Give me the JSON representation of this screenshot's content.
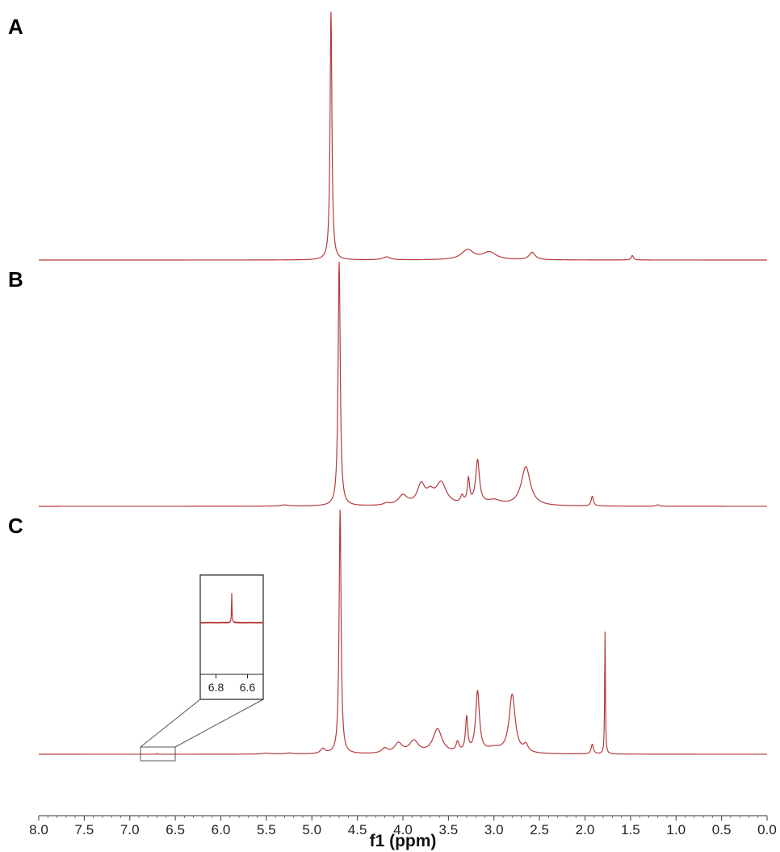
{
  "chart_data": {
    "type": "line",
    "title": "",
    "xlabel": "f1 (ppm)",
    "xlim": [
      8.0,
      0.0
    ],
    "x_reversed": true,
    "x_ticks": [
      "8.0",
      "7.5",
      "7.0",
      "6.5",
      "6.0",
      "5.5",
      "5.0",
      "4.5",
      "4.0",
      "3.5",
      "3.0",
      "2.5",
      "2.0",
      "1.5",
      "1.0",
      "0.5",
      "0.0"
    ],
    "grid": false,
    "line_color": "#b5393b",
    "panels": [
      {
        "label": "A",
        "peaks": [
          {
            "ppm": 4.79,
            "height": 1.0,
            "width": 0.012
          },
          {
            "ppm": 4.18,
            "height": 0.012,
            "width": 0.05
          },
          {
            "ppm": 3.29,
            "height": 0.04,
            "width": 0.08
          },
          {
            "ppm": 3.05,
            "height": 0.03,
            "width": 0.09
          },
          {
            "ppm": 2.58,
            "height": 0.03,
            "width": 0.04
          },
          {
            "ppm": 1.48,
            "height": 0.018,
            "width": 0.015
          }
        ]
      },
      {
        "label": "B",
        "peaks": [
          {
            "ppm": 4.7,
            "height": 1.0,
            "width": 0.014
          },
          {
            "ppm": 5.3,
            "height": 0.005,
            "width": 0.05
          },
          {
            "ppm": 4.18,
            "height": 0.008,
            "width": 0.04
          },
          {
            "ppm": 4.0,
            "height": 0.04,
            "width": 0.06
          },
          {
            "ppm": 3.8,
            "height": 0.08,
            "width": 0.05
          },
          {
            "ppm": 3.7,
            "height": 0.04,
            "width": 0.05
          },
          {
            "ppm": 3.58,
            "height": 0.09,
            "width": 0.07
          },
          {
            "ppm": 3.35,
            "height": 0.03,
            "width": 0.02
          },
          {
            "ppm": 3.28,
            "height": 0.1,
            "width": 0.015
          },
          {
            "ppm": 3.18,
            "height": 0.18,
            "width": 0.025
          },
          {
            "ppm": 3.0,
            "height": 0.02,
            "width": 0.1
          },
          {
            "ppm": 2.65,
            "height": 0.16,
            "width": 0.06
          },
          {
            "ppm": 1.92,
            "height": 0.04,
            "width": 0.015
          },
          {
            "ppm": 1.2,
            "height": 0.006,
            "width": 0.02
          }
        ]
      },
      {
        "label": "C",
        "peaks": [
          {
            "ppm": 4.69,
            "height": 1.0,
            "width": 0.013
          },
          {
            "ppm": 4.88,
            "height": 0.02,
            "width": 0.03
          },
          {
            "ppm": 5.5,
            "height": 0.004,
            "width": 0.05
          },
          {
            "ppm": 5.25,
            "height": 0.004,
            "width": 0.05
          },
          {
            "ppm": 4.2,
            "height": 0.02,
            "width": 0.04
          },
          {
            "ppm": 4.05,
            "height": 0.04,
            "width": 0.05
          },
          {
            "ppm": 3.88,
            "height": 0.05,
            "width": 0.06
          },
          {
            "ppm": 3.62,
            "height": 0.1,
            "width": 0.06
          },
          {
            "ppm": 3.4,
            "height": 0.04,
            "width": 0.02
          },
          {
            "ppm": 3.3,
            "height": 0.14,
            "width": 0.015
          },
          {
            "ppm": 3.18,
            "height": 0.25,
            "width": 0.025
          },
          {
            "ppm": 3.0,
            "height": 0.02,
            "width": 0.1
          },
          {
            "ppm": 2.8,
            "height": 0.24,
            "width": 0.04
          },
          {
            "ppm": 2.65,
            "height": 0.03,
            "width": 0.03
          },
          {
            "ppm": 1.92,
            "height": 0.04,
            "width": 0.015
          },
          {
            "ppm": 1.78,
            "height": 0.5,
            "width": 0.005
          },
          {
            "ppm": 6.7,
            "height": 0.003,
            "width": 0.004
          }
        ],
        "inset": {
          "xlim": [
            6.9,
            6.5
          ],
          "x_ticks": [
            "6.8",
            "6.6"
          ],
          "source_range": [
            6.9,
            6.5
          ],
          "peaks": [
            {
              "ppm": 6.7,
              "height": 1.0,
              "width": 0.002
            }
          ]
        }
      }
    ]
  }
}
